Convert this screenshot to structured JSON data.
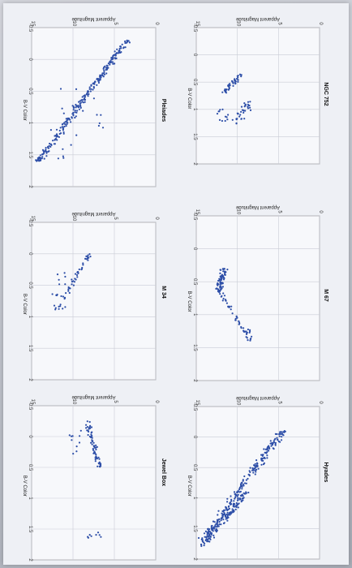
{
  "chart_data": [
    {
      "type": "scatter",
      "title": "NGC 752",
      "xlabel": "B-V Color",
      "ylabel": "Apparent Magnitude",
      "xlim": [
        -0.5,
        2
      ],
      "ylim": [
        15,
        0
      ],
      "xticks": [
        "-0.5",
        "0",
        "0.5",
        "1",
        "1.5",
        "2"
      ],
      "yticks": [
        "15",
        "10",
        "5",
        "0"
      ],
      "cluster": "ngc752"
    },
    {
      "type": "scatter",
      "title": "Pleiades",
      "xlabel": "B-V Color",
      "ylabel": "Apparent Magnitude",
      "xlim": [
        -0.5,
        2
      ],
      "ylim": [
        15,
        0
      ],
      "xticks": [
        "-0.5",
        "0",
        "0.5",
        "1",
        "1.5",
        "2"
      ],
      "yticks": [
        "15",
        "10",
        "5",
        "0"
      ],
      "cluster": "pleiades"
    },
    {
      "type": "scatter",
      "title": "M 67",
      "xlabel": "B-V Color",
      "ylabel": "Apparent Magnitude",
      "xlim": [
        -0.5,
        2
      ],
      "ylim": [
        15,
        0
      ],
      "xticks": [
        "-0.5",
        "0",
        "0.5",
        "1",
        "1.5",
        "2"
      ],
      "yticks": [
        "15",
        "10",
        "5",
        "0"
      ],
      "cluster": "m67"
    },
    {
      "type": "scatter",
      "title": "M 34",
      "xlabel": "B-V Color",
      "ylabel": "Apparent Magnitude",
      "xlim": [
        -0.5,
        2
      ],
      "ylim": [
        15,
        0
      ],
      "xticks": [
        "-0.5",
        "0",
        "0.5",
        "1",
        "1.5",
        "2"
      ],
      "yticks": [
        "15",
        "10",
        "5",
        "0"
      ],
      "cluster": "m34"
    },
    {
      "type": "scatter",
      "title": "Hyades",
      "xlabel": "B-V Color",
      "ylabel": "Apparent Magnitude",
      "xlim": [
        -0.5,
        2
      ],
      "ylim": [
        15,
        0
      ],
      "xticks": [
        "-0.5",
        "0",
        "0.5",
        "1",
        "1.5",
        "2"
      ],
      "yticks": [
        "15",
        "10",
        "5",
        "0"
      ],
      "cluster": "hyades"
    },
    {
      "type": "scatter",
      "title": "Jewel Box",
      "xlabel": "B-V Color",
      "ylabel": "Apparent Magnitude",
      "xlim": [
        -0.5,
        2
      ],
      "ylim": [
        15,
        0
      ],
      "xticks": [
        "-0.5",
        "0",
        "0.5",
        "1",
        "1.5",
        "2"
      ],
      "yticks": [
        "15",
        "10",
        "5",
        "0"
      ],
      "cluster": "jewelbox"
    }
  ],
  "colors": {
    "points": "#2e4fa8",
    "grid": "#c9ccd6"
  }
}
